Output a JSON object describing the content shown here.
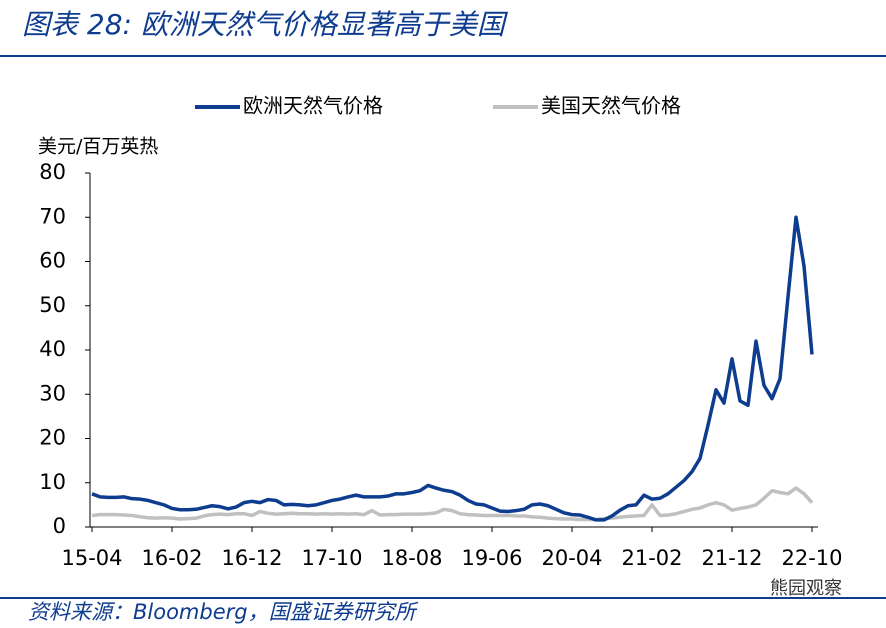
{
  "title": "图表 28: 欧洲天然气价格显著高于美国",
  "source": "资料来源：Bloomberg，国盛证券研究所",
  "watermark": "熊园观察",
  "chart_data": {
    "type": "line",
    "y_label": "美元/百万英热",
    "categories": [
      "15-04",
      null,
      null,
      null,
      null,
      null,
      null,
      null,
      null,
      null,
      "16-02",
      null,
      null,
      null,
      null,
      null,
      null,
      null,
      null,
      null,
      "16-12",
      null,
      null,
      null,
      null,
      null,
      null,
      null,
      null,
      null,
      "17-10",
      null,
      null,
      null,
      null,
      null,
      null,
      null,
      null,
      null,
      "18-08",
      null,
      null,
      null,
      null,
      null,
      null,
      null,
      null,
      null,
      "19-06",
      null,
      null,
      null,
      null,
      null,
      null,
      null,
      null,
      null,
      "20-04",
      null,
      null,
      null,
      null,
      null,
      null,
      null,
      null,
      null,
      "21-02",
      null,
      null,
      null,
      null,
      null,
      null,
      null,
      null,
      null,
      "21-12",
      null,
      null,
      null,
      null,
      null,
      null,
      null,
      null,
      null,
      "22-10"
    ],
    "series": [
      {
        "name": "欧洲天然气价格",
        "color": "#0e3c8f",
        "values": [
          7.5,
          6.8,
          6.7,
          6.7,
          6.8,
          6.4,
          6.3,
          6.0,
          5.5,
          5.0,
          4.2,
          3.9,
          3.9,
          4.0,
          4.4,
          4.8,
          4.6,
          4.1,
          4.5,
          5.5,
          5.8,
          5.5,
          6.2,
          6.0,
          5.0,
          5.1,
          5.0,
          4.8,
          5.0,
          5.5,
          6.0,
          6.3,
          6.8,
          7.2,
          6.8,
          6.8,
          6.8,
          7.0,
          7.5,
          7.5,
          7.8,
          8.2,
          9.4,
          8.8,
          8.3,
          8.0,
          7.2,
          6.0,
          5.2,
          5.0,
          4.3,
          3.6,
          3.5,
          3.7,
          4.0,
          5.0,
          5.2,
          4.8,
          4.0,
          3.2,
          2.8,
          2.7,
          2.2,
          1.6,
          1.6,
          2.5,
          3.8,
          4.8,
          5.0,
          7.2,
          6.3,
          6.5,
          7.5,
          9.0,
          10.5,
          12.5,
          15.5,
          23,
          31,
          28,
          38,
          28.5,
          27.5,
          42,
          32,
          29,
          33.5,
          52,
          70,
          59,
          39
        ]
      },
      {
        "name": "美国天然气价格",
        "color": "#c0c0c0",
        "values": [
          2.6,
          2.8,
          2.8,
          2.8,
          2.7,
          2.6,
          2.3,
          2.1,
          2.0,
          2.1,
          2.0,
          1.8,
          1.9,
          2.0,
          2.5,
          2.8,
          2.9,
          2.8,
          3.0,
          3.0,
          2.6,
          3.5,
          3.1,
          2.9,
          3.0,
          3.1,
          3.0,
          3.0,
          2.9,
          3.0,
          2.9,
          3.0,
          2.9,
          3.0,
          2.8,
          3.7,
          2.7,
          2.8,
          2.8,
          2.9,
          2.9,
          2.9,
          3.0,
          3.2,
          4.0,
          3.7,
          3.0,
          2.8,
          2.7,
          2.6,
          2.6,
          2.6,
          2.6,
          2.5,
          2.5,
          2.3,
          2.2,
          2.0,
          1.9,
          1.8,
          1.8,
          1.7,
          1.7,
          1.7,
          1.9,
          2.0,
          2.2,
          2.4,
          2.5,
          2.6,
          5.0,
          2.6,
          2.7,
          3.0,
          3.5,
          4.0,
          4.3,
          5.0,
          5.5,
          5.0,
          3.8,
          4.2,
          4.5,
          5.0,
          6.5,
          8.2,
          7.8,
          7.5,
          8.8,
          7.5,
          5.5
        ]
      }
    ],
    "ylim": [
      0,
      80
    ],
    "yticks": [
      0,
      10,
      20,
      30,
      40,
      50,
      60,
      70,
      80
    ]
  }
}
